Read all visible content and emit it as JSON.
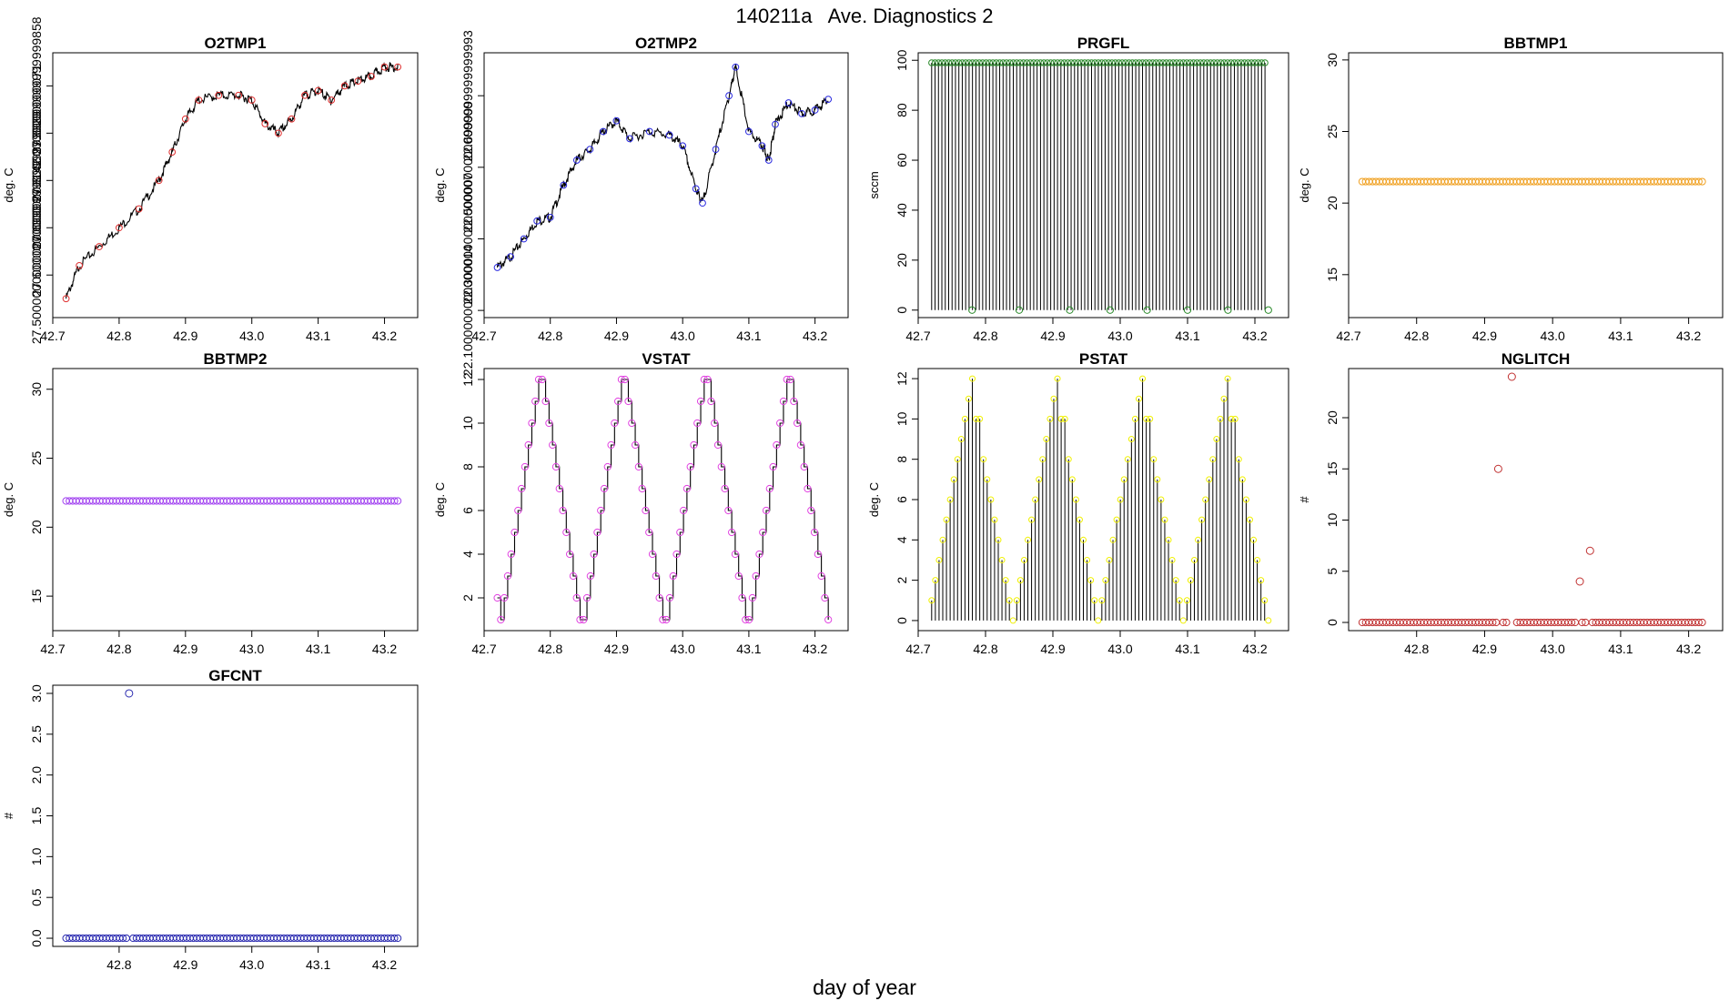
{
  "page": {
    "title": "140211a   Ave. Diagnostics 2",
    "xlabel": "day of year"
  },
  "colors": {
    "frame": "#000000",
    "line": "#000000",
    "O2TMP1": "#e03030",
    "O2TMP2": "#2a2ae0",
    "PRGFL": "#2a8a2a",
    "BBTMP1": "#f0a020",
    "BBTMP2": "#a040f0",
    "VSTAT": "#e040e0",
    "PSTAT": "#f0f000",
    "NGLITCH": "#c03030",
    "GFCNT": "#2a2ab0"
  },
  "chart_data": [
    {
      "id": "O2TMP1",
      "type": "line",
      "title": "O2TMP1",
      "ylabel": "deg. C",
      "xlim": [
        42.7,
        43.25
      ],
      "ylim": [
        27.41,
        27.97
      ],
      "xticks": [
        42.7,
        42.8,
        42.9,
        43.0,
        43.1,
        43.2
      ],
      "yticks": [
        27.5,
        27.6,
        27.7,
        27.8,
        27.9
      ],
      "x": [
        42.72,
        42.74,
        42.77,
        42.8,
        42.83,
        42.86,
        42.88,
        42.9,
        42.92,
        42.95,
        42.98,
        43.0,
        43.02,
        43.04,
        43.06,
        43.08,
        43.1,
        43.12,
        43.14,
        43.16,
        43.18,
        43.2,
        43.22
      ],
      "y": [
        27.45,
        27.52,
        27.56,
        27.6,
        27.64,
        27.7,
        27.76,
        27.83,
        27.87,
        27.88,
        27.88,
        27.87,
        27.82,
        27.8,
        27.83,
        27.88,
        27.89,
        27.87,
        27.9,
        27.91,
        27.92,
        27.94,
        27.94
      ],
      "marker_color_key": "O2TMP1"
    },
    {
      "id": "O2TMP2",
      "type": "line",
      "title": "O2TMP2",
      "ylabel": "deg. C",
      "xlim": [
        42.7,
        43.25
      ],
      "ylim": [
        22.08,
        22.82
      ],
      "xticks": [
        42.7,
        42.8,
        42.9,
        43.0,
        43.1,
        43.2
      ],
      "yticks": [
        22.1,
        22.3,
        22.5,
        22.7
      ],
      "x": [
        42.72,
        42.74,
        42.76,
        42.78,
        42.8,
        42.82,
        42.84,
        42.86,
        42.88,
        42.9,
        42.92,
        42.95,
        42.98,
        43.0,
        43.02,
        43.03,
        43.05,
        43.07,
        43.08,
        43.1,
        43.12,
        43.13,
        43.14,
        43.16,
        43.18,
        43.2,
        43.22
      ],
      "y": [
        22.22,
        22.25,
        22.3,
        22.35,
        22.36,
        22.45,
        22.52,
        22.55,
        22.6,
        22.63,
        22.58,
        22.6,
        22.59,
        22.56,
        22.44,
        22.4,
        22.55,
        22.7,
        22.78,
        22.6,
        22.56,
        22.52,
        22.62,
        22.68,
        22.65,
        22.66,
        22.69
      ],
      "marker_color_key": "O2TMP2"
    },
    {
      "id": "PRGFL",
      "type": "spikes",
      "title": "PRGFL",
      "ylabel": "sccm",
      "xlim": [
        42.7,
        43.25
      ],
      "ylim": [
        -3,
        103
      ],
      "xticks": [
        42.7,
        42.8,
        42.9,
        43.0,
        43.1,
        43.2
      ],
      "yticks": [
        0,
        20,
        40,
        60,
        80,
        100
      ],
      "x_start": 42.72,
      "x_end": 43.215,
      "n_spikes": 99,
      "high": 99,
      "low": 0,
      "zero_markers": [
        42.78,
        42.85,
        42.925,
        42.985,
        43.04,
        43.1,
        43.16,
        43.22
      ],
      "marker_color_key": "PRGFL"
    },
    {
      "id": "BBTMP1",
      "type": "scatter",
      "title": "BBTMP1",
      "ylabel": "deg. C",
      "xlim": [
        42.7,
        43.25
      ],
      "ylim": [
        12,
        30.5
      ],
      "xticks": [
        42.7,
        42.8,
        42.9,
        43.0,
        43.1,
        43.2
      ],
      "yticks": [
        15,
        20,
        25,
        30
      ],
      "x_start": 42.72,
      "x_end": 43.22,
      "n": 100,
      "value": 21.5,
      "marker_color_key": "BBTMP1"
    },
    {
      "id": "BBTMP2",
      "type": "scatter",
      "title": "BBTMP2",
      "ylabel": "deg. C",
      "xlim": [
        42.7,
        43.25
      ],
      "ylim": [
        12.5,
        31.5
      ],
      "xticks": [
        42.7,
        42.8,
        42.9,
        43.0,
        43.1,
        43.2
      ],
      "yticks": [
        15,
        20,
        25,
        30
      ],
      "x_start": 42.72,
      "x_end": 43.22,
      "n": 100,
      "value": 21.9,
      "marker_color_key": "BBTMP2"
    },
    {
      "id": "VSTAT",
      "type": "step",
      "title": "VSTAT",
      "ylabel": "deg. C",
      "xlim": [
        42.7,
        43.25
      ],
      "ylim": [
        0.5,
        12.5
      ],
      "xticks": [
        42.7,
        42.8,
        42.9,
        43.0,
        43.1,
        43.2
      ],
      "yticks": [
        2,
        4,
        6,
        8,
        10,
        12
      ],
      "x_start": 42.72,
      "x_end": 43.22,
      "y": [
        2,
        1,
        2,
        3,
        4,
        5,
        6,
        7,
        8,
        9,
        10,
        11,
        12,
        12,
        11,
        10,
        9,
        8,
        7,
        6,
        5,
        4,
        3,
        2,
        1,
        1,
        2,
        3,
        4,
        5,
        6,
        7,
        8,
        9,
        10,
        11,
        12,
        12,
        11,
        10,
        9,
        8,
        7,
        6,
        5,
        4,
        3,
        2,
        1,
        1,
        2,
        3,
        4,
        5,
        6,
        7,
        8,
        9,
        10,
        11,
        12,
        12,
        11,
        10,
        9,
        8,
        7,
        6,
        5,
        4,
        3,
        2,
        1,
        1,
        2,
        3,
        4,
        5,
        6,
        7,
        8,
        9,
        10,
        11,
        12,
        12,
        11,
        10,
        9,
        8,
        7,
        6,
        5,
        4,
        3,
        2,
        1
      ],
      "marker_color_key": "VSTAT"
    },
    {
      "id": "PSTAT",
      "type": "spikes_pattern",
      "title": "PSTAT",
      "ylabel": "deg. C",
      "xlim": [
        42.7,
        43.25
      ],
      "ylim": [
        -0.5,
        12.5
      ],
      "xticks": [
        42.7,
        42.8,
        42.9,
        43.0,
        43.1,
        43.2
      ],
      "yticks": [
        0,
        2,
        4,
        6,
        8,
        10,
        12
      ],
      "x_start": 42.72,
      "x_end": 43.22,
      "y": [
        1,
        2,
        3,
        4,
        5,
        6,
        7,
        8,
        9,
        10,
        11,
        12,
        10,
        10,
        8,
        7,
        6,
        5,
        4,
        3,
        2,
        1,
        0,
        1,
        2,
        3,
        4,
        5,
        6,
        7,
        8,
        9,
        10,
        11,
        12,
        10,
        10,
        8,
        7,
        6,
        5,
        4,
        3,
        2,
        1,
        0,
        1,
        2,
        3,
        4,
        5,
        6,
        7,
        8,
        9,
        10,
        11,
        12,
        10,
        10,
        8,
        7,
        6,
        5,
        4,
        3,
        2,
        1,
        0,
        1,
        2,
        3,
        4,
        5,
        6,
        7,
        8,
        9,
        10,
        11,
        12,
        10,
        10,
        8,
        7,
        6,
        5,
        4,
        3,
        2,
        1,
        0
      ],
      "marker_color_key": "PSTAT"
    },
    {
      "id": "NGLITCH",
      "type": "scatter_custom",
      "title": "NGLITCH",
      "ylabel": "#",
      "xlim": [
        42.7,
        43.25
      ],
      "ylim": [
        -0.8,
        24.8
      ],
      "xticks": [
        42.8,
        42.9,
        43.0,
        43.1,
        43.2
      ],
      "yticks": [
        0,
        5,
        10,
        15,
        20
      ],
      "x_start": 42.72,
      "x_end": 43.22,
      "n": 100,
      "baseline": 0,
      "outliers": [
        [
          42.92,
          15
        ],
        [
          42.94,
          24
        ],
        [
          43.04,
          4
        ],
        [
          43.055,
          7
        ]
      ],
      "marker_color_key": "NGLITCH"
    },
    {
      "id": "GFCNT",
      "type": "scatter_custom",
      "title": "GFCNT",
      "ylabel": "#",
      "xlim": [
        42.7,
        43.25
      ],
      "ylim": [
        -0.1,
        3.1
      ],
      "xticks": [
        42.8,
        42.9,
        43.0,
        43.1,
        43.2
      ],
      "yticks": [
        0.0,
        0.5,
        1.0,
        1.5,
        2.0,
        2.5,
        3.0
      ],
      "x_start": 42.72,
      "x_end": 43.22,
      "n": 100,
      "baseline": 0,
      "outliers": [
        [
          42.815,
          3
        ]
      ],
      "marker_color_key": "GFCNT"
    }
  ]
}
